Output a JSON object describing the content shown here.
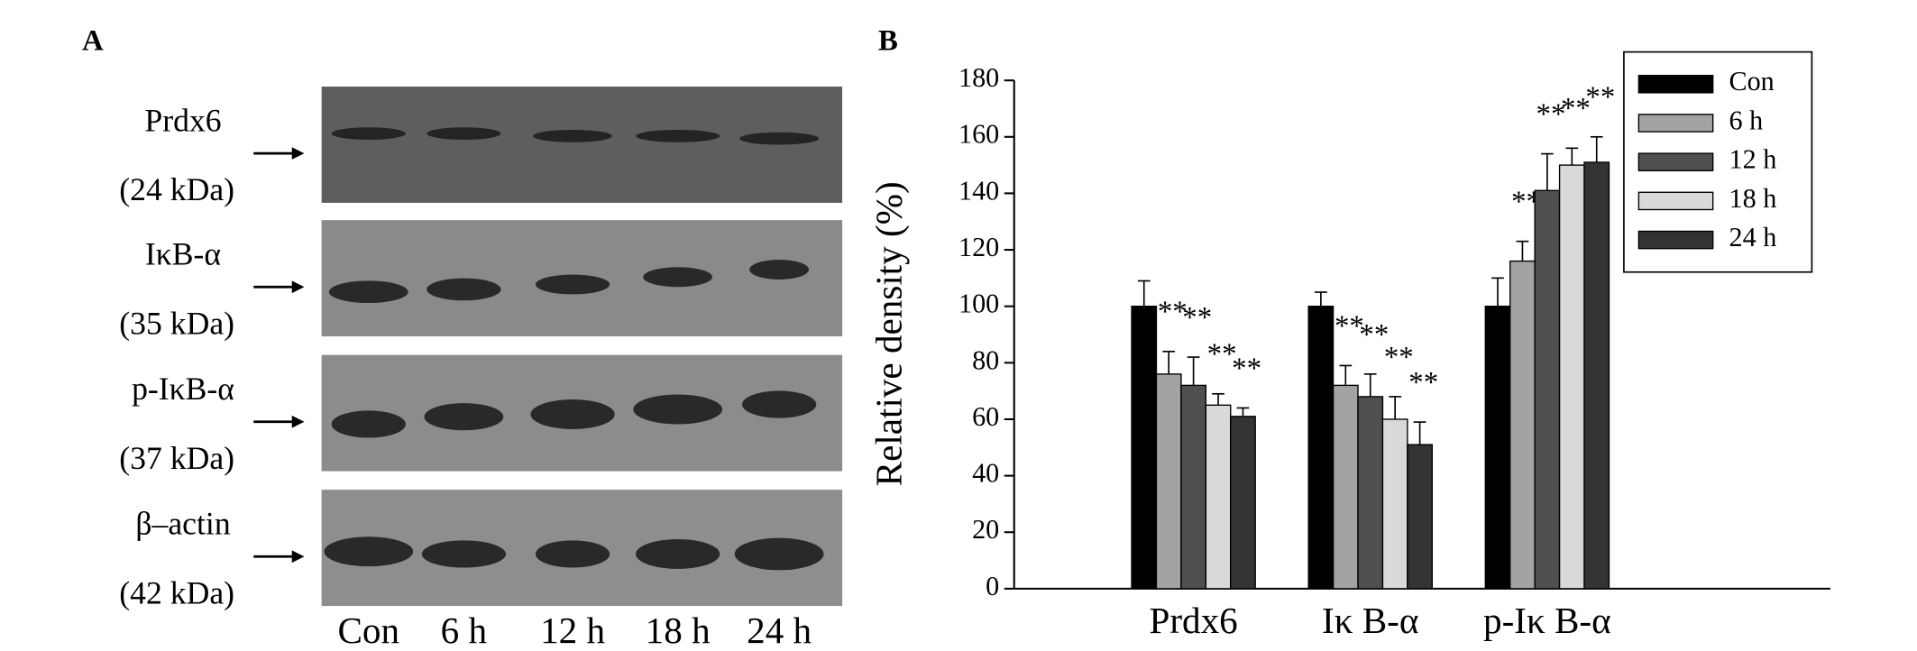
{
  "blot": {
    "panel_label": "A",
    "rows": [
      {
        "protein": "Prdx6",
        "weight": "(24 kDa)"
      },
      {
        "protein": "IκB-α",
        "weight": "(35 kDa)"
      },
      {
        "protein": "p-IκB-α",
        "weight": "(37 kDa)"
      },
      {
        "protein": "β–actin",
        "weight": "(42 kDa)"
      }
    ],
    "lanes": [
      "Con",
      "6 h",
      "12 h",
      "18 h",
      "24 h"
    ]
  },
  "chart_data": {
    "type": "bar",
    "panel_label": "B",
    "y_label": "Relative density (%)",
    "categories": [
      "Prdx6",
      "Iκ B-α",
      "p-Iκ B-α"
    ],
    "series": [
      {
        "name": "Con",
        "color": "#000000",
        "values": [
          100,
          100,
          100
        ],
        "errors": [
          9,
          5,
          10
        ]
      },
      {
        "name": "6 h",
        "color": "#a3a3a3",
        "values": [
          76,
          72,
          116
        ],
        "errors": [
          8,
          7,
          7
        ],
        "significance": [
          "**",
          "**",
          "**"
        ]
      },
      {
        "name": "12 h",
        "color": "#4f4f4f",
        "values": [
          72,
          68,
          141
        ],
        "errors": [
          10,
          8,
          13
        ],
        "significance": [
          "**",
          "**",
          "**"
        ]
      },
      {
        "name": "18 h",
        "color": "#d9d9d9",
        "values": [
          65,
          60,
          150
        ],
        "errors": [
          4,
          8,
          6
        ],
        "significance": [
          "**",
          "**",
          "**"
        ]
      },
      {
        "name": "24 h",
        "color": "#333333",
        "values": [
          61,
          51,
          151
        ],
        "errors": [
          3,
          8,
          9
        ],
        "significance": [
          "**",
          "**",
          "**"
        ]
      }
    ],
    "ylim": [
      0,
      180
    ],
    "yticks": [
      0,
      20,
      40,
      60,
      80,
      100,
      120,
      140,
      160,
      180
    ],
    "legend": "upper right"
  }
}
